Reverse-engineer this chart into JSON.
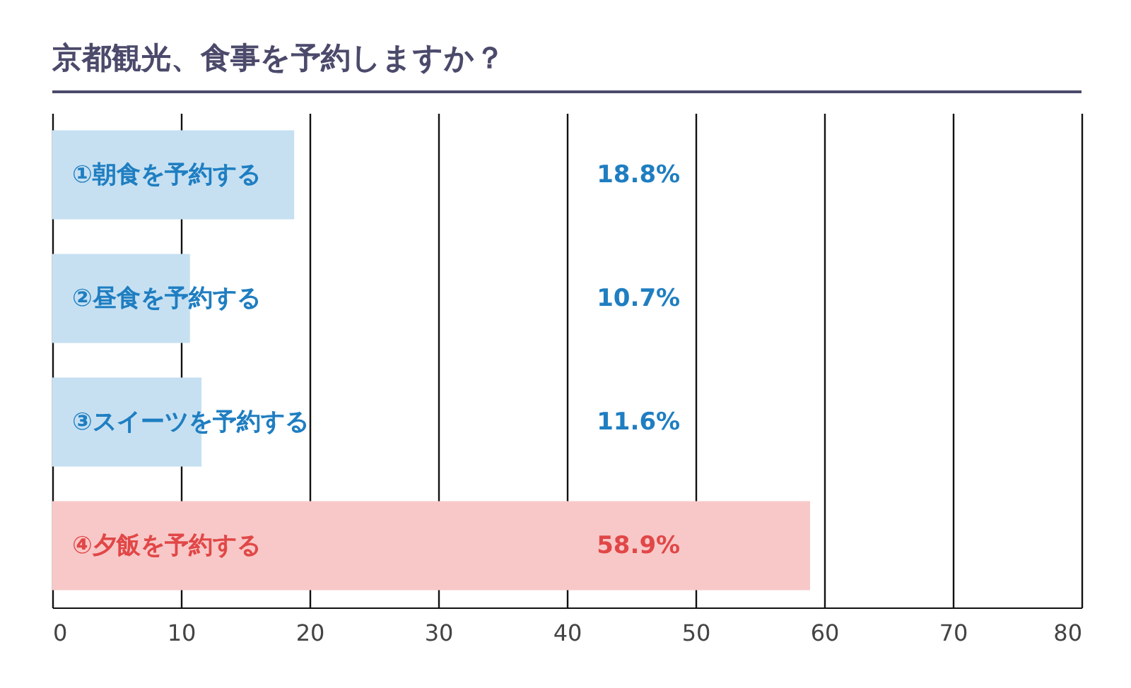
{
  "chart_data": {
    "type": "bar",
    "orientation": "horizontal",
    "title": "京都観光、食事を予約しますか？",
    "categories": [
      "①朝食を予約する",
      "②昼食を予約する",
      "③スイーツを予約する",
      "④夕飯を予約する"
    ],
    "values": [
      18.8,
      10.7,
      11.6,
      58.9
    ],
    "colors": [
      "#c6e0f2",
      "#c6e0f2",
      "#c6e0f2",
      "#f8c8c8"
    ],
    "value_labels": [
      "18.8%",
      "10.7%",
      "11.6%",
      "58.9%"
    ],
    "xlim": [
      0,
      80
    ],
    "xticks": [
      0,
      10,
      20,
      30,
      40,
      50,
      60,
      70,
      80
    ],
    "grid": "x"
  }
}
